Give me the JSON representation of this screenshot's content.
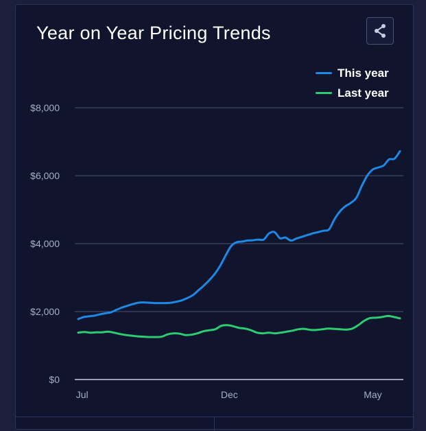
{
  "card": {
    "title": "Year on Year Pricing Trends",
    "share_icon": "share-icon"
  },
  "colors": {
    "this_year": "#1e88e5",
    "last_year": "#2ecc71",
    "background": "#10152d",
    "grid": "#4a5275"
  },
  "chart_data": {
    "type": "line",
    "title": "Year on Year Pricing Trends",
    "legend": [
      "This year",
      "Last year"
    ],
    "legend_position": "top-right",
    "grid": true,
    "ylim": [
      0,
      8000
    ],
    "y_ticks": [
      {
        "value": 0,
        "label": "$0"
      },
      {
        "value": 2000,
        "label": "$2,000"
      },
      {
        "value": 4000,
        "label": "$4,000"
      },
      {
        "value": 6000,
        "label": "$6,000"
      },
      {
        "value": 8000,
        "label": "$8,000"
      }
    ],
    "x_ticks": [
      {
        "index": 1,
        "label": "Jul"
      },
      {
        "index": 39,
        "label": "Dec"
      },
      {
        "index": 76,
        "label": "May"
      }
    ],
    "series": [
      {
        "name": "This year",
        "color": "#1e88e5",
        "values": [
          1780,
          1840,
          1860,
          1880,
          1920,
          1950,
          1980,
          2050,
          2120,
          2170,
          2220,
          2260,
          2270,
          2260,
          2250,
          2250,
          2250,
          2260,
          2290,
          2330,
          2400,
          2480,
          2620,
          2760,
          2920,
          3100,
          3340,
          3640,
          3920,
          4040,
          4060,
          4090,
          4100,
          4120,
          4120,
          4300,
          4340,
          4160,
          4180,
          4090,
          4150,
          4200,
          4250,
          4300,
          4340,
          4380,
          4420,
          4720,
          4950,
          5100,
          5200,
          5350,
          5700,
          6000,
          6180,
          6240,
          6300,
          6480,
          6500,
          6720
        ]
      },
      {
        "name": "Last year",
        "color": "#2ecc71",
        "values": [
          1380,
          1400,
          1380,
          1390,
          1390,
          1410,
          1380,
          1340,
          1310,
          1290,
          1270,
          1260,
          1250,
          1250,
          1260,
          1330,
          1360,
          1350,
          1310,
          1320,
          1360,
          1420,
          1450,
          1480,
          1580,
          1600,
          1570,
          1520,
          1500,
          1450,
          1380,
          1360,
          1380,
          1360,
          1380,
          1410,
          1440,
          1480,
          1490,
          1460,
          1460,
          1480,
          1500,
          1490,
          1480,
          1470,
          1500,
          1600,
          1730,
          1810,
          1820,
          1840,
          1870,
          1840,
          1800
        ]
      }
    ],
    "x_points_total": 84
  },
  "bottom": {}
}
